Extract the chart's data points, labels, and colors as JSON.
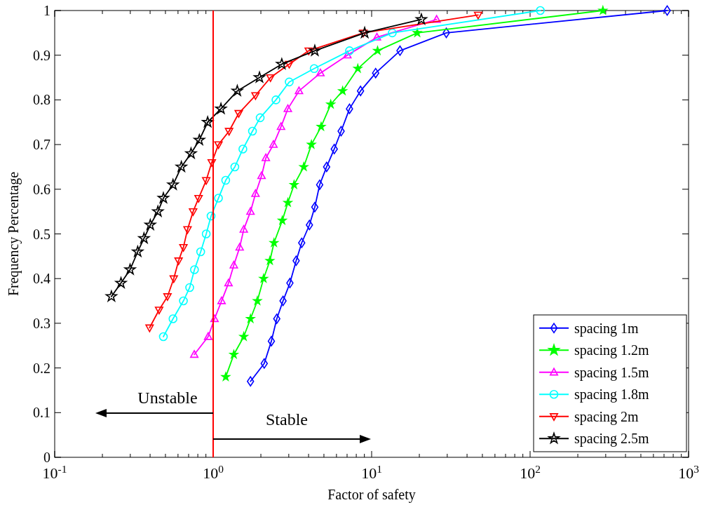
{
  "chart_data": {
    "type": "line",
    "xlabel": "Factor of safety",
    "ylabel": "Frequency Percentage",
    "log": "x",
    "grid": false,
    "legend": "bottom right",
    "xlim": [
      0.1,
      1000
    ],
    "ylim": [
      0,
      1
    ],
    "xticks": [
      {
        "value": 0.1,
        "label": "10$^{-1}$"
      },
      {
        "value": 0.2,
        "label": null
      },
      {
        "value": 0.3,
        "label": null
      },
      {
        "value": 0.4,
        "label": null
      },
      {
        "value": 0.5,
        "label": null
      },
      {
        "value": 0.6,
        "label": null
      },
      {
        "value": 0.7,
        "label": null
      },
      {
        "value": 0.8,
        "label": null
      },
      {
        "value": 0.9,
        "label": null
      },
      {
        "value": 1,
        "label": "10$^{0}$"
      },
      {
        "value": 2,
        "label": null
      },
      {
        "value": 3,
        "label": null
      },
      {
        "value": 4,
        "label": null
      },
      {
        "value": 5,
        "label": null
      },
      {
        "value": 6,
        "label": null
      },
      {
        "value": 7,
        "label": null
      },
      {
        "value": 8,
        "label": null
      },
      {
        "value": 9,
        "label": null
      },
      {
        "value": 10,
        "label": "10$^{1}$"
      },
      {
        "value": 20,
        "label": null
      },
      {
        "value": 30,
        "label": null
      },
      {
        "value": 40,
        "label": null
      },
      {
        "value": 50,
        "label": null
      },
      {
        "value": 60,
        "label": null
      },
      {
        "value": 70,
        "label": null
      },
      {
        "value": 80,
        "label": null
      },
      {
        "value": 90,
        "label": null
      },
      {
        "value": 100,
        "label": "10$^{2}$"
      },
      {
        "value": 200,
        "label": null
      },
      {
        "value": 300,
        "label": null
      },
      {
        "value": 400,
        "label": null
      },
      {
        "value": 500,
        "label": null
      },
      {
        "value": 600,
        "label": null
      },
      {
        "value": 700,
        "label": null
      },
      {
        "value": 800,
        "label": null
      },
      {
        "value": 900,
        "label": null
      },
      {
        "value": 1000,
        "label": "10$^{3}$"
      }
    ],
    "yticks": [
      0,
      0.1,
      0.2,
      0.3,
      0.4,
      0.5,
      0.6,
      0.7,
      0.8,
      0.9,
      1
    ],
    "ref_lines": [
      {
        "axis": "x",
        "value": 1,
        "color": "#ff0000"
      }
    ],
    "annotations": [
      "Unstable",
      "Stable"
    ],
    "series": [
      {
        "name": "spacing 1m",
        "color": "#0000ff",
        "marker": "diamond",
        "x": [
          1.72,
          2.1,
          2.33,
          2.52,
          2.76,
          3.05,
          3.34,
          3.62,
          4.05,
          4.38,
          4.7,
          5.2,
          5.81,
          6.42,
          7.25,
          8.51,
          10.6,
          15.1,
          29.6,
          733
        ],
        "values": [
          0.17,
          0.21,
          0.26,
          0.31,
          0.35,
          0.39,
          0.44,
          0.48,
          0.52,
          0.56,
          0.61,
          0.65,
          0.69,
          0.73,
          0.78,
          0.82,
          0.86,
          0.91,
          0.95,
          1.0
        ]
      },
      {
        "name": "spacing 1.2m",
        "color": "#00ff00",
        "marker": "star",
        "x": [
          1.2,
          1.35,
          1.56,
          1.72,
          1.9,
          2.08,
          2.28,
          2.42,
          2.73,
          2.96,
          3.24,
          3.73,
          4.17,
          4.8,
          5.52,
          6.56,
          8.18,
          10.9,
          19.4,
          288
        ],
        "values": [
          0.18,
          0.23,
          0.27,
          0.31,
          0.35,
          0.4,
          0.44,
          0.48,
          0.53,
          0.57,
          0.61,
          0.65,
          0.7,
          0.74,
          0.79,
          0.82,
          0.87,
          0.91,
          0.95,
          1.0
        ]
      },
      {
        "name": "spacing 1.5m",
        "color": "#ff00ff",
        "marker": "triangle",
        "x": [
          0.76,
          0.93,
          1.02,
          1.13,
          1.25,
          1.35,
          1.47,
          1.56,
          1.72,
          1.85,
          2.02,
          2.15,
          2.4,
          2.68,
          2.96,
          3.48,
          4.75,
          7.03,
          10.8,
          25.7
        ],
        "values": [
          0.23,
          0.27,
          0.31,
          0.35,
          0.39,
          0.43,
          0.47,
          0.51,
          0.55,
          0.59,
          0.63,
          0.67,
          0.7,
          0.74,
          0.78,
          0.82,
          0.86,
          0.9,
          0.94,
          0.98
        ]
      },
      {
        "name": "spacing 1.8m",
        "color": "#00ffff",
        "marker": "circle",
        "x": [
          0.485,
          0.558,
          0.649,
          0.711,
          0.762,
          0.834,
          0.904,
          0.97,
          1.08,
          1.2,
          1.37,
          1.54,
          1.77,
          1.98,
          2.49,
          3.02,
          4.34,
          7.25,
          13.5,
          116
        ],
        "values": [
          0.27,
          0.31,
          0.35,
          0.38,
          0.42,
          0.46,
          0.5,
          0.54,
          0.58,
          0.62,
          0.65,
          0.69,
          0.73,
          0.76,
          0.8,
          0.84,
          0.87,
          0.91,
          0.95,
          1.0
        ]
      },
      {
        "name": "spacing 2m",
        "color": "#ff0000",
        "marker": "triangle-down",
        "x": [
          0.397,
          0.456,
          0.515,
          0.564,
          0.605,
          0.649,
          0.689,
          0.747,
          0.809,
          0.904,
          0.98,
          1.08,
          1.26,
          1.45,
          1.85,
          2.3,
          3.02,
          4.01,
          8.87,
          47.0
        ],
        "values": [
          0.29,
          0.33,
          0.36,
          0.4,
          0.44,
          0.47,
          0.51,
          0.55,
          0.58,
          0.62,
          0.66,
          0.7,
          0.73,
          0.77,
          0.81,
          0.85,
          0.88,
          0.91,
          0.95,
          0.99
        ]
      },
      {
        "name": "spacing 2.5m",
        "color": "#000000",
        "marker": "star",
        "x": [
          0.228,
          0.262,
          0.299,
          0.334,
          0.366,
          0.401,
          0.448,
          0.485,
          0.558,
          0.63,
          0.725,
          0.818,
          0.923,
          1.12,
          1.42,
          1.96,
          2.71,
          4.38,
          9.04,
          20.6
        ],
        "values": [
          0.36,
          0.39,
          0.42,
          0.46,
          0.49,
          0.52,
          0.55,
          0.58,
          0.61,
          0.65,
          0.68,
          0.71,
          0.75,
          0.78,
          0.82,
          0.85,
          0.88,
          0.91,
          0.95,
          0.98
        ]
      }
    ]
  }
}
